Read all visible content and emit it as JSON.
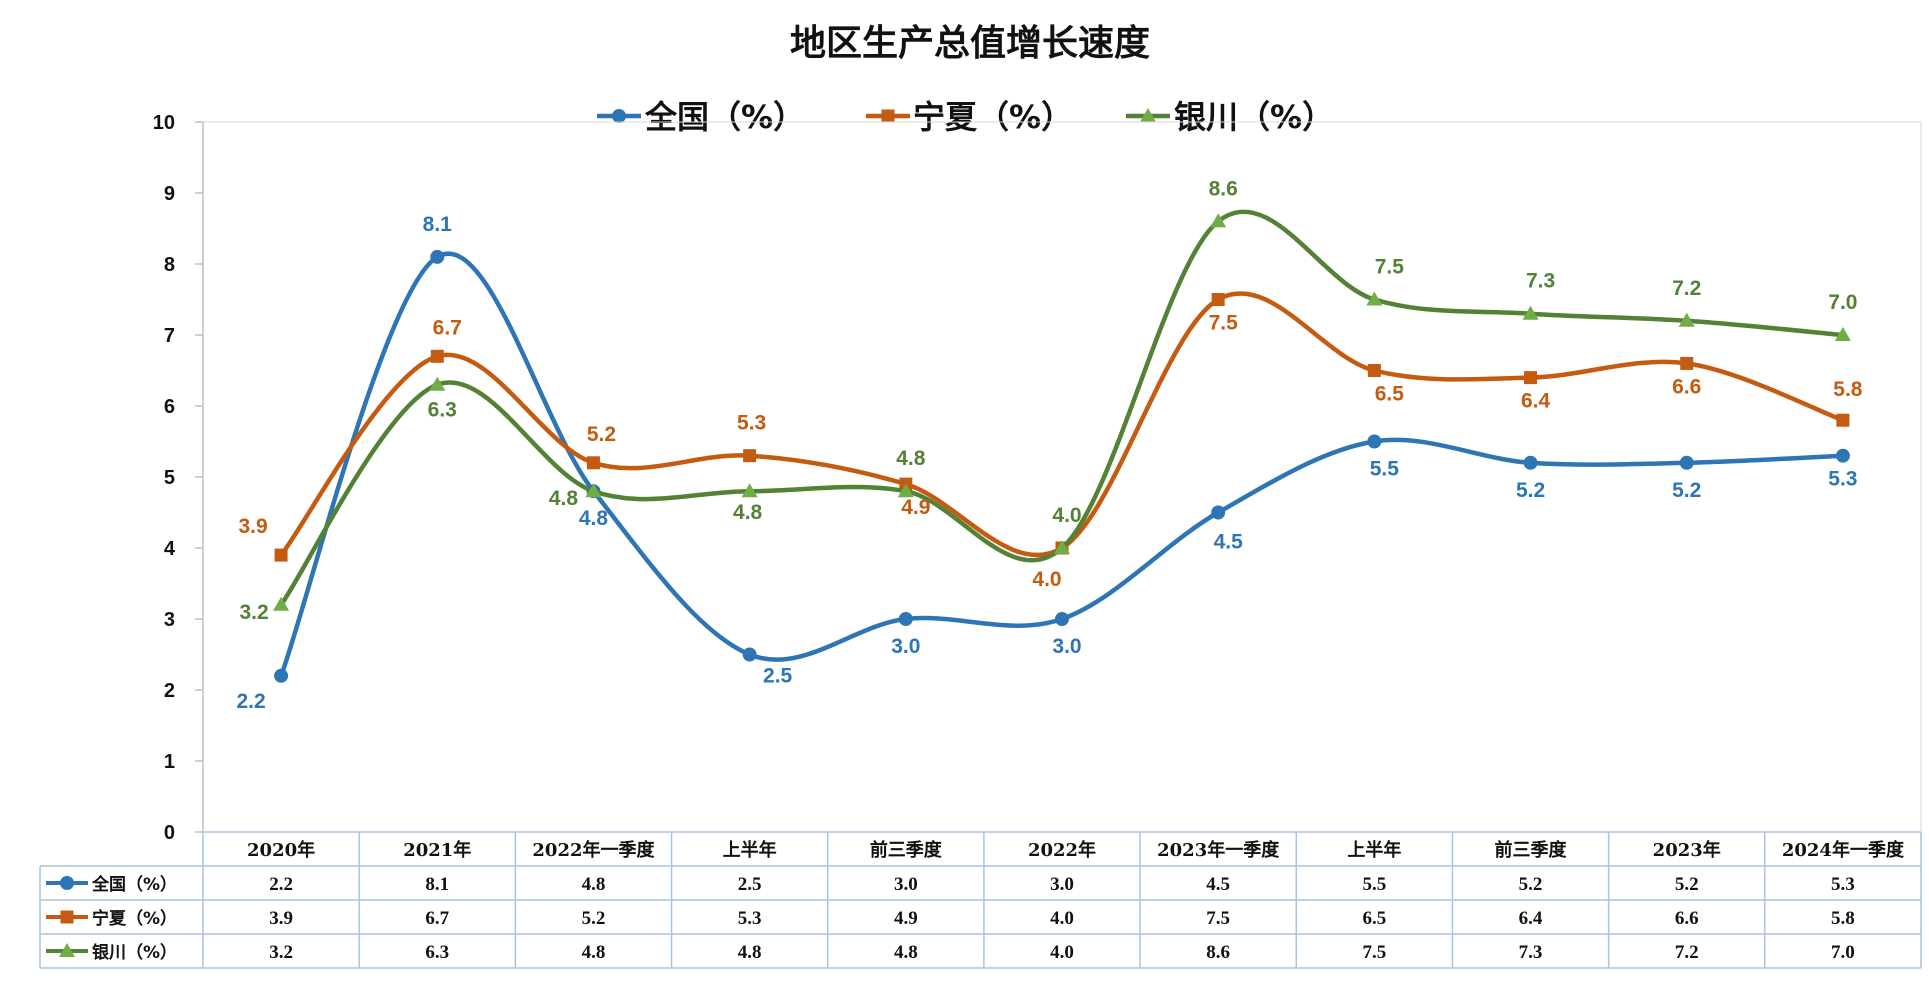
{
  "chart_data": {
    "type": "line",
    "title": "地区生产总值增长速度",
    "categories": [
      "2020年",
      "2021年",
      "2022年一季度",
      "上半年",
      "前三季度",
      "2022年",
      "2023年一季度",
      "上半年",
      "前三季度",
      "2023年",
      "2024年一季度"
    ],
    "ylim": [
      0,
      10
    ],
    "yticks": [
      0,
      1,
      2,
      3,
      4,
      5,
      6,
      7,
      8,
      9,
      10
    ],
    "grid": false,
    "legend": "top",
    "smooth": true,
    "data_table": true,
    "series": [
      {
        "name": "全国（%）",
        "color": "#2E75B6",
        "marker": "circle",
        "values": [
          2.2,
          8.1,
          4.8,
          2.5,
          3.0,
          3.0,
          4.5,
          5.5,
          5.2,
          5.2,
          5.3
        ],
        "labels": [
          "2.2",
          "8.1",
          "4.8",
          "2.5",
          "3.0",
          "3.0",
          "4.5",
          "5.5",
          "5.2",
          "5.2",
          "5.3"
        ]
      },
      {
        "name": "宁夏（%）",
        "color": "#C55A11",
        "marker": "square",
        "values": [
          3.9,
          6.7,
          5.2,
          5.3,
          4.9,
          4.0,
          7.5,
          6.5,
          6.4,
          6.6,
          5.8
        ],
        "labels": [
          "3.9",
          "6.7",
          "5.2",
          "5.3",
          "4.9",
          "4.0",
          "7.5",
          "6.5",
          "6.4",
          "6.6",
          "5.8"
        ]
      },
      {
        "name": "银川（%）",
        "color": "#538135",
        "marker": "triangle",
        "marker_color": "#70AD47",
        "values": [
          3.2,
          6.3,
          4.8,
          4.8,
          4.8,
          4.0,
          8.6,
          7.5,
          7.3,
          7.2,
          7.0
        ],
        "labels": [
          "3.2",
          "6.3",
          "4.8",
          "4.8",
          "4.8",
          "4.0",
          "8.6",
          "7.5",
          "7.3",
          "7.2",
          "7.0"
        ]
      }
    ]
  }
}
